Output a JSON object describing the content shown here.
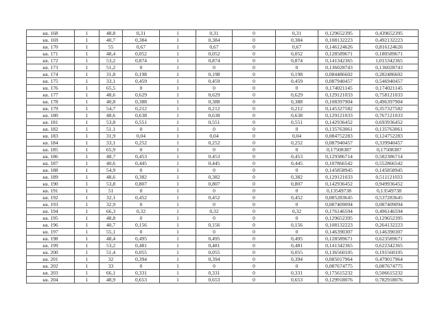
{
  "table": {
    "rows": [
      [
        "кв. 168",
        "1",
        "48,8",
        "0,31",
        "1",
        "0,31",
        "0",
        "0,31",
        "0,129652395",
        "0,439652395"
      ],
      [
        "кв. 169",
        "1",
        "40,7",
        "0,384",
        "1",
        "0,384",
        "0",
        "0,384",
        "0,108132223",
        "0,492132223"
      ],
      [
        "кв. 170",
        "1",
        "55",
        "0,67",
        "1",
        "0,67",
        "0",
        "0,67",
        "0,146124626",
        "0,816124626"
      ],
      [
        "кв. 171",
        "1",
        "48,4",
        "0,052",
        "1",
        "0,052",
        "0",
        "0,052",
        "0,128589671",
        "0,180589671"
      ],
      [
        "кв. 172",
        "1",
        "53,2",
        "0,874",
        "1",
        "0,874",
        "0",
        "0,874",
        "0,141342365",
        "1,015342365"
      ],
      [
        "кв. 173",
        "1",
        "51,2",
        "0",
        "1",
        "0",
        "0",
        "0",
        "0,136028743",
        "0,136028743"
      ],
      [
        "кв. 174",
        "1",
        "31,8",
        "0,198",
        "1",
        "0,198",
        "0",
        "0,198",
        "0,084486602",
        "0,282486602"
      ],
      [
        "кв. 175",
        "1",
        "33,1",
        "0,459",
        "1",
        "0,459",
        "0",
        "0,459",
        "0,087940457",
        "0,546940457"
      ],
      [
        "кв. 176",
        "1",
        "65,5",
        "0",
        "1",
        "0",
        "0",
        "0",
        "0,174021145",
        "0,174021145"
      ],
      [
        "кв. 177",
        "1",
        "48,6",
        "0,629",
        "1",
        "0,629",
        "0",
        "0,629",
        "0,129121033",
        "0,758121033"
      ],
      [
        "кв. 178",
        "1",
        "40,8",
        "0,388",
        "1",
        "0,388",
        "0",
        "0,388",
        "0,108397904",
        "0,496397904"
      ],
      [
        "кв. 179",
        "1",
        "54,7",
        "0,212",
        "1",
        "0,212",
        "0",
        "0,212",
        "0,145327582",
        "0,357327582"
      ],
      [
        "кв. 180",
        "1",
        "48,6",
        "0,638",
        "1",
        "0,638",
        "0",
        "0,638",
        "0,129121033",
        "0,767121033"
      ],
      [
        "кв. 181",
        "1",
        "53,8",
        "0,551",
        "1",
        "0,551",
        "0",
        "0,551",
        "0,142936452",
        "0,693936452"
      ],
      [
        "кв. 182",
        "1",
        "51,1",
        "0",
        "1",
        "0",
        "0",
        "0",
        "0,135763061",
        "0,135763061"
      ],
      [
        "кв. 183",
        "1",
        "31,9",
        "0,04",
        "1",
        "0,04",
        "0",
        "0,04",
        "0,084752283",
        "0,124752283"
      ],
      [
        "кв. 184",
        "1",
        "33,1",
        "0,252",
        "1",
        "0,252",
        "0",
        "0,252",
        "0,087940457",
        "0,339940457"
      ],
      [
        "кв. 185",
        "1",
        "65,9",
        "0",
        "1",
        "0",
        "0",
        "0",
        "0,17508387",
        "0,17508387"
      ],
      [
        "кв. 186",
        "1",
        "48,7",
        "0,453",
        "1",
        "0,453",
        "0",
        "0,453",
        "0,129386714",
        "0,582386714"
      ],
      [
        "кв. 187",
        "1",
        "40,6",
        "0,445",
        "1",
        "0,445",
        "0",
        "0,445",
        "0,107866542",
        "0,552866542"
      ],
      [
        "кв. 188",
        "1",
        "54,9",
        "0",
        "1",
        "0",
        "0",
        "0",
        "0,145858945",
        "0,145858945"
      ],
      [
        "кв. 189",
        "1",
        "48,6",
        "0,382",
        "1",
        "0,382",
        "0",
        "0,382",
        "0,129121033",
        "0,511121033"
      ],
      [
        "кв. 190",
        "1",
        "53,8",
        "0,807",
        "1",
        "0,807",
        "0",
        "0,807",
        "0,142936452",
        "0,949936452"
      ],
      [
        "кв. 191",
        "1",
        "51",
        "0",
        "1",
        "0",
        "0",
        "0",
        "0,13549738",
        "0,13549738"
      ],
      [
        "кв. 192",
        "1",
        "32,1",
        "0,452",
        "1",
        "0,452",
        "0",
        "0,452",
        "0,085283645",
        "0,537283645"
      ],
      [
        "кв. 193",
        "1",
        "32,9",
        "0",
        "1",
        "0",
        "0",
        "0",
        "0,087409094",
        "0,087409094"
      ],
      [
        "кв. 194",
        "1",
        "66,3",
        "0,32",
        "1",
        "0,32",
        "0",
        "0,32",
        "0,176146594",
        "0,496146594"
      ],
      [
        "кв. 195",
        "1",
        "48,8",
        "0",
        "1",
        "0",
        "0",
        "0",
        "0,129652395",
        "0,129652395"
      ],
      [
        "кв. 196",
        "1",
        "40,7",
        "0,156",
        "1",
        "0,156",
        "0",
        "0,156",
        "0,108132223",
        "0,264132223"
      ],
      [
        "кв. 197",
        "1",
        "55,1",
        "0",
        "1",
        "0",
        "0",
        "0",
        "0,146390307",
        "0,146390307"
      ],
      [
        "кв. 198",
        "1",
        "48,4",
        "0,495",
        "1",
        "0,495",
        "0",
        "0,495",
        "0,128589671",
        "0,623589671"
      ],
      [
        "кв. 199",
        "1",
        "53,2",
        "0,481",
        "1",
        "0,481",
        "0",
        "0,481",
        "0,141342365",
        "0,622342365"
      ],
      [
        "кв. 200",
        "1",
        "51,4",
        "0,055",
        "1",
        "0,055",
        "0",
        "0,055",
        "0,136560105",
        "0,191560105"
      ],
      [
        "кв. 201",
        "1",
        "32",
        "0,394",
        "1",
        "0,394",
        "0",
        "0,394",
        "0,085017964",
        "0,479017964"
      ],
      [
        "кв. 202",
        "1",
        "33",
        "0",
        "1",
        "0",
        "0",
        "0",
        "0,087674775",
        "0,087674775"
      ],
      [
        "кв. 203",
        "1",
        "66,1",
        "0,331",
        "1",
        "0,331",
        "0",
        "0,331",
        "0,175615232",
        "0,506615232"
      ],
      [
        "кв. 204",
        "1",
        "48,9",
        "0,653",
        "1",
        "0,653",
        "0",
        "0,653",
        "0,129918076",
        "0,782918076"
      ]
    ]
  }
}
